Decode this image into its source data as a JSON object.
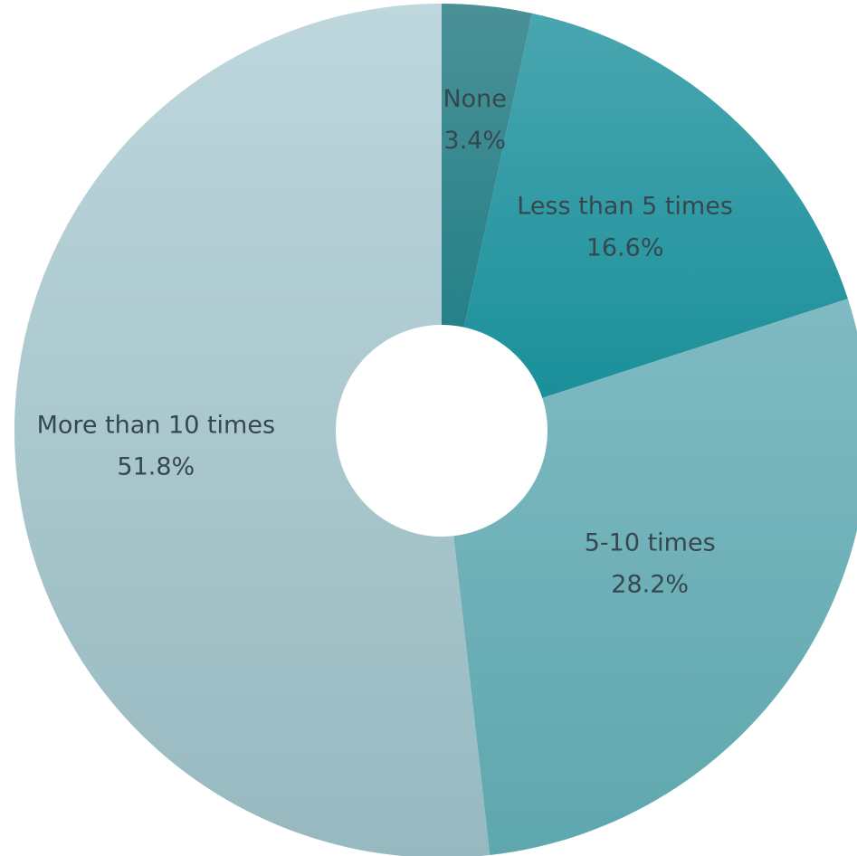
{
  "chart_data": {
    "type": "pie",
    "variant": "donut",
    "start_angle_deg": 0,
    "direction": "clockwise",
    "categories": [
      "None",
      "Less than 5 times",
      "5-10 times",
      "More than 10 times"
    ],
    "values": [
      3.4,
      16.6,
      28.2,
      51.8
    ],
    "value_labels": [
      "3.4%",
      "16.6%",
      "28.2%",
      "51.8%"
    ],
    "colors": [
      [
        "#4a9197",
        "#1a7b83"
      ],
      [
        "#49a6b0",
        "#168e98"
      ],
      [
        "#80bac2",
        "#5ea7ae"
      ],
      [
        "#bdd7dd",
        "#96b9bf"
      ]
    ],
    "label_color": "#37474f",
    "legend": "none"
  }
}
